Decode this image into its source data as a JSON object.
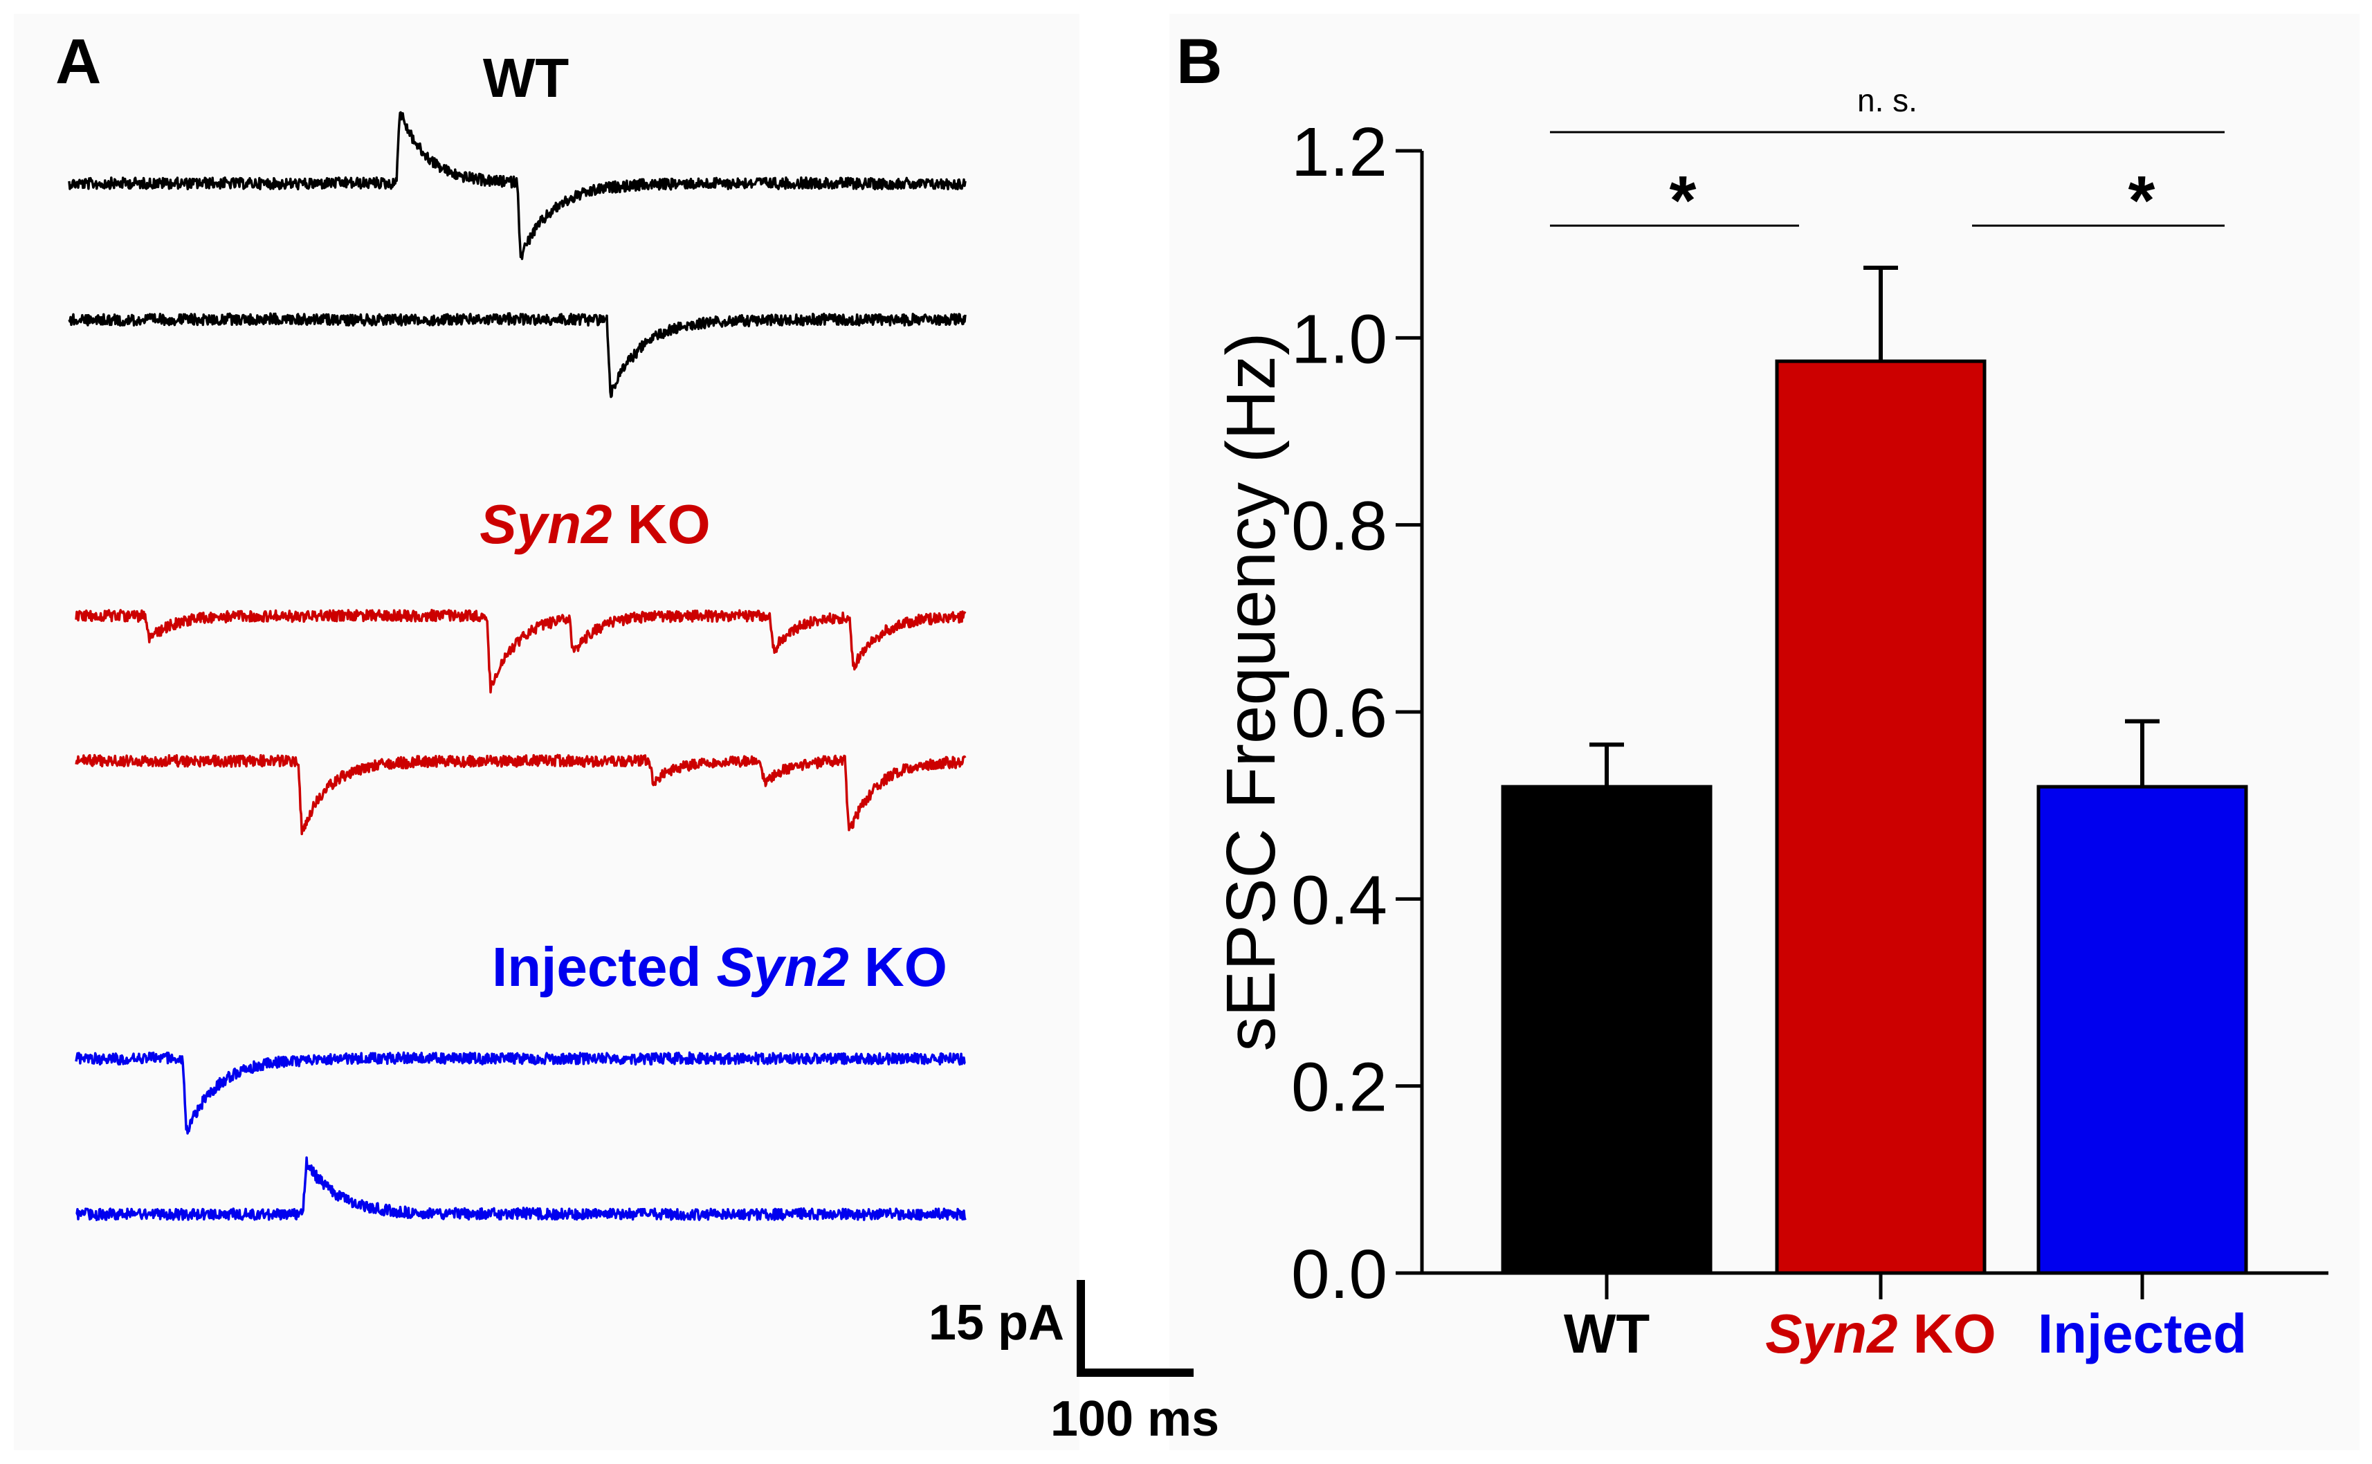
{
  "colors": {
    "wt": "#000000",
    "ko": "#cc0000",
    "injected": "#0000ee",
    "axis": "#000000"
  },
  "panel_a": {
    "letter": "A",
    "groups": [
      {
        "id": "wt",
        "label_parts": [
          {
            "text": "WT",
            "italic": false
          }
        ],
        "color": "#000000",
        "traces": [
          {
            "events": [
              {
                "t": 0.365,
                "amp": -1.0,
                "tau": 0.03
              },
              {
                "t": 0.5,
                "amp": 1.0,
                "tau": 0.035
              }
            ]
          },
          {
            "events": [
              {
                "t": 0.6,
                "amp": 1.0,
                "tau": 0.035
              }
            ]
          }
        ]
      },
      {
        "id": "ko",
        "label_parts": [
          {
            "text": "Syn2",
            "italic": true
          },
          {
            "text": " KO",
            "italic": false
          }
        ],
        "color": "#cc0000",
        "traces": [
          {
            "events": [
              {
                "t": 0.078,
                "amp": 0.3,
                "tau": 0.03
              },
              {
                "t": 0.462,
                "amp": 1.0,
                "tau": 0.03
              },
              {
                "t": 0.555,
                "amp": 0.5,
                "tau": 0.025
              },
              {
                "t": 0.78,
                "amp": 0.5,
                "tau": 0.025
              },
              {
                "t": 0.87,
                "amp": 0.7,
                "tau": 0.03
              }
            ]
          },
          {
            "events": [
              {
                "t": 0.25,
                "amp": 1.0,
                "tau": 0.03
              },
              {
                "t": 0.645,
                "amp": 0.3,
                "tau": 0.025
              },
              {
                "t": 0.77,
                "amp": 0.3,
                "tau": 0.025
              },
              {
                "t": 0.865,
                "amp": 1.0,
                "tau": 0.03
              }
            ]
          }
        ]
      },
      {
        "id": "injected",
        "label_parts": [
          {
            "text": "Injected ",
            "italic": false
          },
          {
            "text": "Syn2",
            "italic": true
          },
          {
            "text": " KO",
            "italic": false
          }
        ],
        "color": "#0000ee",
        "traces": [
          {
            "events": [
              {
                "t": 0.12,
                "amp": 1.0,
                "tau": 0.035
              }
            ]
          },
          {
            "events": [
              {
                "t": 0.255,
                "amp": -0.7,
                "tau": 0.035
              }
            ]
          }
        ]
      }
    ],
    "scale_bar": {
      "y_label": "15 pA",
      "x_label": "100 ms"
    }
  },
  "chart_data": {
    "type": "bar",
    "panel_letter": "B",
    "title": "",
    "xlabel": "",
    "ylabel": "sEPSC Frequency (Hz)",
    "ylim": [
      0,
      1.2
    ],
    "yticks": [
      "0.0",
      "0.2",
      "0.4",
      "0.6",
      "0.8",
      "1.0",
      "1.2"
    ],
    "categories": [
      {
        "label_parts": [
          {
            "text": "WT",
            "italic": false
          }
        ],
        "color": "#000000"
      },
      {
        "label_parts": [
          {
            "text": "Syn2",
            "italic": true
          },
          {
            "text": " KO",
            "italic": false
          }
        ],
        "color": "#cc0000"
      },
      {
        "label_parts": [
          {
            "text": "Injected",
            "italic": false
          }
        ],
        "color": "#0000ee"
      }
    ],
    "values": [
      0.52,
      0.975,
      0.52
    ],
    "errors": [
      0.045,
      0.1,
      0.07
    ],
    "significance": [
      {
        "from": 0,
        "to": 2,
        "y": 1.22,
        "label": "n. s."
      },
      {
        "from": 0,
        "to": 1,
        "y": 1.12,
        "label": "*"
      },
      {
        "from": 1,
        "to": 2,
        "y": 1.12,
        "label": "*"
      }
    ]
  }
}
